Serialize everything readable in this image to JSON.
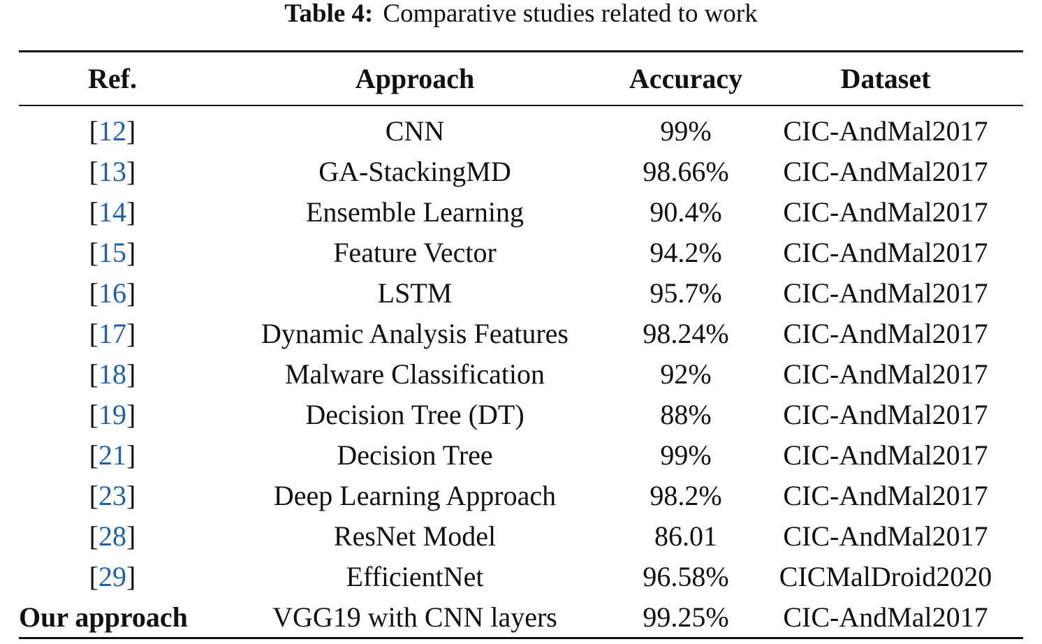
{
  "caption": {
    "label": "Table 4:",
    "text": "Comparative studies related to work"
  },
  "table": {
    "headers": [
      "Ref.",
      "Approach",
      "Accuracy",
      "Dataset"
    ],
    "rows": [
      {
        "ref": "12",
        "approach": "CNN",
        "accuracy": "99%",
        "dataset": "CIC-AndMal2017"
      },
      {
        "ref": "13",
        "approach": "GA-StackingMD",
        "accuracy": "98.66%",
        "dataset": "CIC-AndMal2017"
      },
      {
        "ref": "14",
        "approach": "Ensemble Learning",
        "accuracy": "90.4%",
        "dataset": "CIC-AndMal2017"
      },
      {
        "ref": "15",
        "approach": "Feature Vector",
        "accuracy": "94.2%",
        "dataset": "CIC-AndMal2017"
      },
      {
        "ref": "16",
        "approach": "LSTM",
        "accuracy": "95.7%",
        "dataset": "CIC-AndMal2017"
      },
      {
        "ref": "17",
        "approach": "Dynamic Analysis Features",
        "accuracy": "98.24%",
        "dataset": "CIC-AndMal2017"
      },
      {
        "ref": "18",
        "approach": "Malware Classification",
        "accuracy": "92%",
        "dataset": "CIC-AndMal2017"
      },
      {
        "ref": "19",
        "approach": "Decision Tree (DT)",
        "accuracy": "88%",
        "dataset": "CIC-AndMal2017"
      },
      {
        "ref": "21",
        "approach": "Decision Tree",
        "accuracy": "99%",
        "dataset": "CIC-AndMal2017"
      },
      {
        "ref": "23",
        "approach": "Deep Learning Approach",
        "accuracy": "98.2%",
        "dataset": "CIC-AndMal2017"
      },
      {
        "ref": "28",
        "approach": "ResNet Model",
        "accuracy": "86.01",
        "dataset": "CIC-AndMal2017"
      },
      {
        "ref": "29",
        "approach": "EfficientNet",
        "accuracy": "96.58%",
        "dataset": "CICMalDroid2020"
      }
    ],
    "final_row": {
      "ref": "Our approach",
      "approach": "VGG19 with CNN layers",
      "accuracy": "99.25%",
      "dataset": "CIC-AndMal2017"
    }
  },
  "colors": {
    "link": "#1d5fa8",
    "text": "#111111"
  }
}
